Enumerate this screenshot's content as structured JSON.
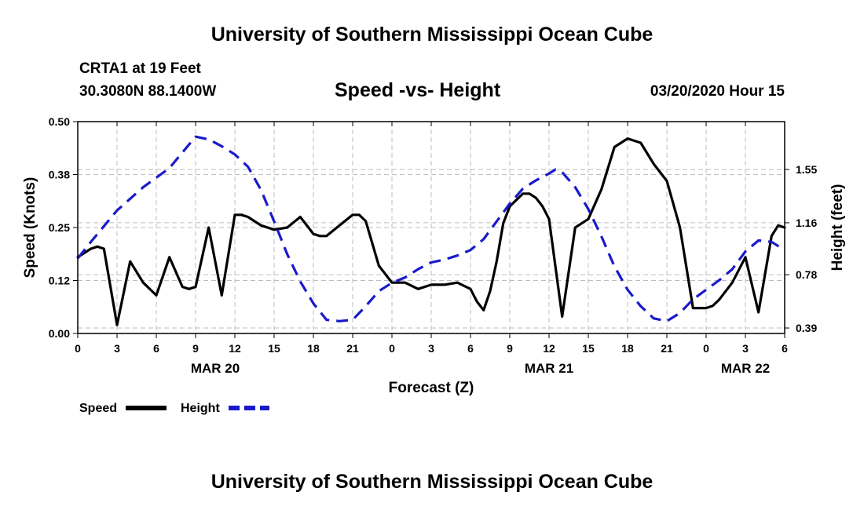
{
  "header": {
    "title": "University of Southern Mississippi Ocean Cube",
    "station_name": "CRTA1 at 19 Feet",
    "station_coords": "30.3080N 88.1400W",
    "date": "03/20/2020 Hour 15"
  },
  "footer": {
    "title": "University of Southern Mississippi Ocean Cube"
  },
  "colors": {
    "speed": "#000000",
    "height": "#1a1acc",
    "grid": "#bdbdbd"
  },
  "chart_data": {
    "type": "line",
    "title": "Speed -vs- Height",
    "xlabel": "Forecast (Z)",
    "ylabel": "Speed (Knots)",
    "y2label": "Height (feet)",
    "xlim": [
      0,
      54
    ],
    "ylim": [
      0,
      0.5
    ],
    "y2lim": [
      0.35,
      1.9
    ],
    "x_ticks": [
      {
        "x": 0,
        "label": "0"
      },
      {
        "x": 3,
        "label": "3"
      },
      {
        "x": 6,
        "label": "6"
      },
      {
        "x": 9,
        "label": "9"
      },
      {
        "x": 12,
        "label": "12"
      },
      {
        "x": 15,
        "label": "15"
      },
      {
        "x": 18,
        "label": "18"
      },
      {
        "x": 21,
        "label": "21"
      },
      {
        "x": 24,
        "label": "0"
      },
      {
        "x": 27,
        "label": "3"
      },
      {
        "x": 30,
        "label": "6"
      },
      {
        "x": 33,
        "label": "9"
      },
      {
        "x": 36,
        "label": "12"
      },
      {
        "x": 39,
        "label": "15"
      },
      {
        "x": 42,
        "label": "18"
      },
      {
        "x": 45,
        "label": "21"
      },
      {
        "x": 48,
        "label": "0"
      },
      {
        "x": 51,
        "label": "3"
      },
      {
        "x": 54,
        "label": "6"
      }
    ],
    "date_labels": [
      {
        "x": 10.5,
        "label": "MAR 20"
      },
      {
        "x": 36,
        "label": "MAR 21"
      },
      {
        "x": 51,
        "label": "MAR 22"
      }
    ],
    "y_ticks": [
      {
        "value": 0.0,
        "label": "0.00"
      },
      {
        "value": 0.125,
        "label": "0.12"
      },
      {
        "value": 0.25,
        "label": "0.25"
      },
      {
        "value": 0.375,
        "label": "0.38"
      },
      {
        "value": 0.5,
        "label": "0.50"
      }
    ],
    "y2_ticks": [
      {
        "value": 0.39,
        "label": "0.39"
      },
      {
        "value": 0.78,
        "label": "0.78"
      },
      {
        "value": 1.16,
        "label": "1.16"
      },
      {
        "value": 1.55,
        "label": "1.55"
      }
    ],
    "legend": [
      {
        "name": "Speed",
        "style": "solid"
      },
      {
        "name": "Height",
        "style": "dashed"
      }
    ],
    "legend_position": "bottom-left",
    "series": [
      {
        "name": "Speed",
        "axis": "left",
        "x": [
          0,
          1,
          1.5,
          2,
          3,
          4,
          5,
          6,
          7,
          8,
          8.5,
          9,
          10,
          11,
          12,
          12.5,
          13,
          14,
          15,
          16,
          17,
          18,
          18.5,
          19,
          20,
          21,
          21.5,
          22,
          23,
          24,
          25,
          26,
          27,
          28,
          29,
          30,
          30.5,
          31,
          31.5,
          32,
          32.5,
          33,
          34,
          34.5,
          35,
          35.5,
          36,
          37,
          38,
          39,
          40,
          41,
          42,
          43,
          44,
          45,
          46,
          47,
          48,
          48.5,
          49,
          50,
          51,
          52,
          53,
          53.5,
          54
        ],
        "values": [
          0.18,
          0.2,
          0.205,
          0.2,
          0.02,
          0.17,
          0.12,
          0.09,
          0.18,
          0.11,
          0.105,
          0.11,
          0.25,
          0.09,
          0.28,
          0.28,
          0.275,
          0.255,
          0.245,
          0.25,
          0.275,
          0.235,
          0.23,
          0.23,
          0.255,
          0.28,
          0.28,
          0.265,
          0.16,
          0.12,
          0.12,
          0.105,
          0.115,
          0.115,
          0.12,
          0.105,
          0.075,
          0.055,
          0.1,
          0.17,
          0.26,
          0.3,
          0.33,
          0.33,
          0.32,
          0.3,
          0.27,
          0.04,
          0.25,
          0.27,
          0.34,
          0.44,
          0.46,
          0.45,
          0.4,
          0.36,
          0.25,
          0.06,
          0.06,
          0.065,
          0.08,
          0.12,
          0.18,
          0.05,
          0.23,
          0.255,
          0.25
        ]
      },
      {
        "name": "Height",
        "axis": "right",
        "x": [
          0,
          1,
          3,
          5,
          7,
          9,
          10,
          11,
          12,
          13,
          14,
          15,
          16,
          17,
          18,
          19,
          20,
          21,
          22,
          23,
          24,
          25,
          26,
          27,
          28,
          29,
          30,
          31,
          32,
          33,
          34,
          35,
          36,
          36.5,
          37,
          38,
          39,
          40,
          41,
          42,
          43,
          44,
          45,
          46,
          47,
          48,
          49,
          50,
          51,
          52,
          53,
          54
        ],
        "values": [
          0.9,
          1.02,
          1.25,
          1.42,
          1.56,
          1.79,
          1.77,
          1.72,
          1.66,
          1.57,
          1.4,
          1.17,
          0.93,
          0.73,
          0.57,
          0.45,
          0.44,
          0.45,
          0.55,
          0.66,
          0.72,
          0.76,
          0.82,
          0.87,
          0.89,
          0.92,
          0.96,
          1.04,
          1.17,
          1.3,
          1.41,
          1.47,
          1.52,
          1.55,
          1.53,
          1.42,
          1.26,
          1.06,
          0.84,
          0.67,
          0.55,
          0.46,
          0.44,
          0.5,
          0.6,
          0.67,
          0.74,
          0.82,
          0.95,
          1.03,
          1.02,
          0.96
        ]
      }
    ]
  }
}
